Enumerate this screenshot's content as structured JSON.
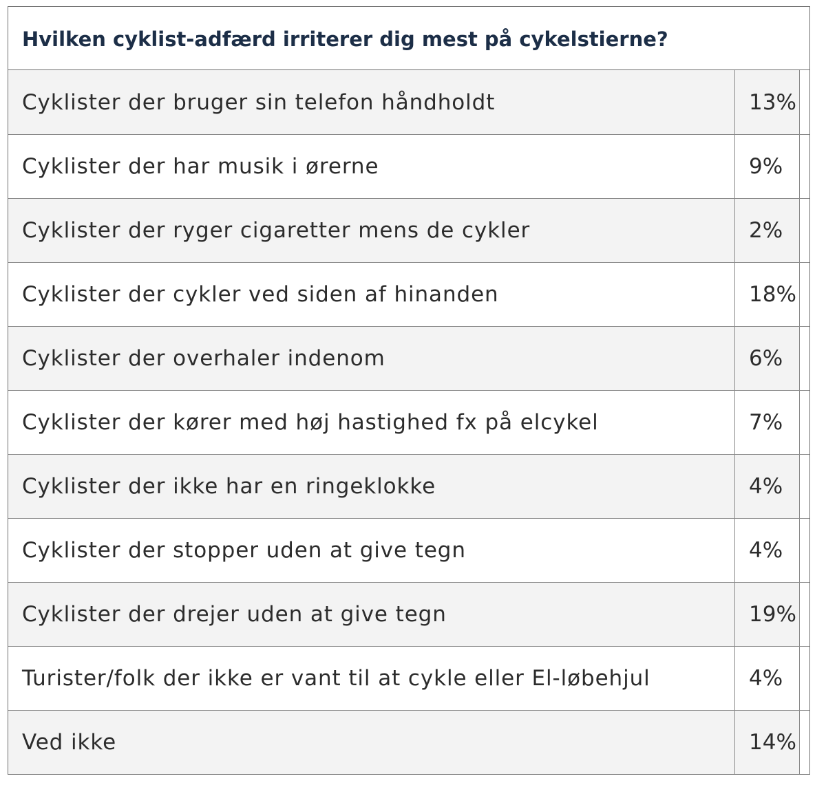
{
  "chart_data": {
    "type": "table",
    "title": "Hvilken cyklist-adfærd irriterer dig mest på cykelstierne?",
    "categories": [
      "Cyklister der bruger sin telefon håndholdt",
      "Cyklister der har musik i ørerne",
      "Cyklister der ryger cigaretter mens de cykler",
      "Cyklister der cykler ved siden af hinanden",
      "Cyklister der overhaler indenom",
      "Cyklister der kører med høj hastighed fx på elcykel",
      "Cyklister der ikke har en ringeklokke",
      "Cyklister der stopper uden at give tegn",
      "Cyklister der drejer uden at give tegn",
      "Turister/folk der ikke er vant til at cykle eller El-løbehjul",
      "Ved ikke"
    ],
    "values": [
      13,
      9,
      2,
      18,
      6,
      7,
      4,
      4,
      19,
      4,
      14
    ],
    "value_labels": [
      "13%",
      "9%",
      "2%",
      "18%",
      "6%",
      "7%",
      "4%",
      "4%",
      "19%",
      "4%",
      "14%"
    ]
  },
  "colors": {
    "title_text": "#1c2e47",
    "row_shaded": "#f3f3f3",
    "row_plain": "#ffffff",
    "border": "#6e6e6e"
  }
}
